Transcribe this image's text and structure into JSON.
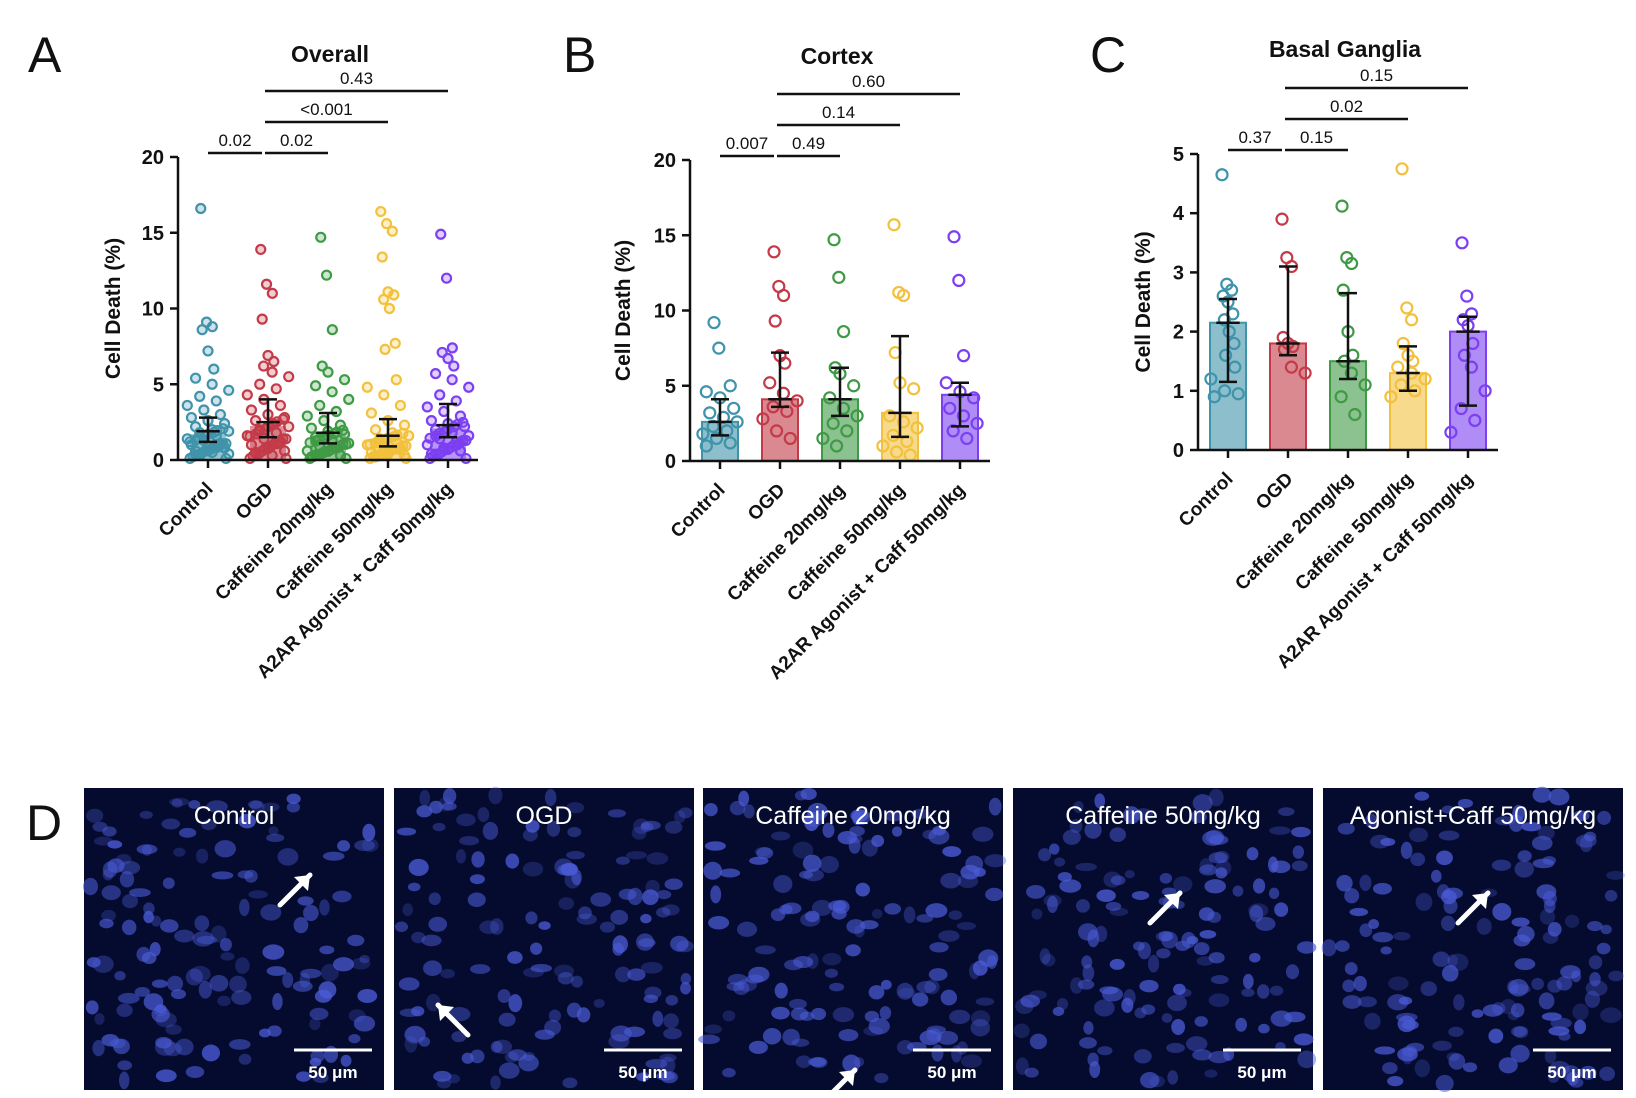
{
  "panel_letters": [
    "A",
    "B",
    "C",
    "D"
  ],
  "colors": {
    "Control": "#3f93aa",
    "OGD": "#c33b48",
    "Caffeine 20mg/kg": "#3f9a45",
    "Caffeine 50mg/kg": "#f2c13d",
    "A2AR Agonist + Caff 50mg/kg": "#7c3ff2",
    "micro_bg": "#050b2e",
    "nucleus": "#4a5bd6"
  },
  "chart_data": [
    {
      "type": "bar",
      "style": "scatter-with-errorbars",
      "panel": "A",
      "title": "Overall",
      "ylabel": "Cell Death (%)",
      "ylim": [
        0,
        20
      ],
      "yticks": [
        0,
        5,
        10,
        15,
        20
      ],
      "categories": [
        "Control",
        "OGD",
        "Caffeine 20mg/kg",
        "Caffeine 50mg/kg",
        "A2AR Agonist + Caff 50mg/kg"
      ],
      "values": [
        1.9,
        2.5,
        1.8,
        1.6,
        2.3
      ],
      "err_low": [
        1.2,
        1.5,
        1.1,
        0.9,
        1.5
      ],
      "err_high": [
        2.8,
        4.0,
        3.1,
        2.7,
        3.7
      ],
      "points": [
        [
          16.6,
          9.1,
          8.8,
          8.6,
          7.2,
          6.0,
          5.4,
          5.0,
          4.6,
          4.2,
          3.9,
          3.6,
          3.3,
          3.0,
          2.8,
          2.6,
          2.4,
          2.2,
          2.0,
          1.9,
          1.8,
          1.6,
          1.4,
          1.3,
          1.1,
          1.0,
          0.9,
          0.8,
          0.6,
          0.5,
          0.4,
          0.3
        ],
        [
          13.9,
          11.6,
          11.0,
          9.3,
          6.9,
          6.5,
          6.2,
          5.8,
          5.5,
          5.0,
          4.7,
          4.3,
          4.0,
          3.6,
          3.3,
          3.0,
          2.8,
          2.6,
          2.4,
          2.2,
          2.0,
          1.8,
          1.6,
          1.4,
          1.2,
          1.0,
          0.8,
          0.6,
          0.5,
          0.3
        ],
        [
          14.7,
          12.2,
          8.6,
          6.2,
          5.8,
          5.3,
          4.9,
          4.5,
          4.0,
          3.6,
          3.2,
          2.9,
          2.6,
          2.3,
          2.1,
          1.9,
          1.7,
          1.5,
          1.3,
          1.1,
          0.9,
          0.8,
          0.6,
          0.5,
          0.3,
          0.2
        ],
        [
          16.4,
          15.6,
          15.1,
          13.4,
          11.1,
          10.9,
          10.6,
          10.0,
          7.7,
          7.3,
          5.3,
          4.8,
          4.3,
          3.6,
          3.1,
          2.6,
          2.3,
          2.0,
          1.8,
          1.6,
          1.4,
          1.2,
          1.0,
          0.8,
          0.7,
          0.5,
          0.4,
          0.3,
          0.2
        ],
        [
          14.9,
          12.0,
          7.4,
          7.1,
          6.7,
          6.2,
          5.7,
          5.3,
          4.8,
          4.3,
          3.9,
          3.5,
          3.2,
          2.9,
          2.6,
          2.4,
          2.2,
          2.0,
          1.8,
          1.6,
          1.4,
          1.2,
          1.0,
          0.8,
          0.6,
          0.4
        ]
      ],
      "comparisons": [
        {
          "from": 0,
          "to": 1,
          "label": "0.02"
        },
        {
          "from": 1,
          "to": 2,
          "label": "0.02"
        },
        {
          "from": 1,
          "to": 3,
          "label": "<0.001"
        },
        {
          "from": 1,
          "to": 4,
          "label": "0.43"
        }
      ]
    },
    {
      "type": "bar",
      "style": "bar-with-points",
      "panel": "B",
      "title": "Cortex",
      "ylabel": "Cell Death (%)",
      "ylim": [
        0,
        20
      ],
      "yticks": [
        0,
        5,
        10,
        15,
        20
      ],
      "categories": [
        "Control",
        "OGD",
        "Caffeine 20mg/kg",
        "Caffeine 50mg/kg",
        "A2AR Agonist + Caff 50mg/kg"
      ],
      "values": [
        2.6,
        4.1,
        4.1,
        3.2,
        4.4
      ],
      "err_low": [
        1.7,
        3.6,
        3.0,
        1.6,
        2.3
      ],
      "err_high": [
        4.1,
        7.2,
        6.2,
        8.3,
        5.2
      ],
      "points": [
        [
          9.2,
          7.5,
          5.0,
          4.6,
          4.2,
          3.5,
          3.2,
          2.9,
          2.6,
          2.3,
          2.0,
          1.8,
          1.5,
          1.2,
          1.0
        ],
        [
          13.9,
          11.6,
          11.0,
          9.3,
          7.0,
          6.5,
          5.2,
          4.5,
          4.0,
          3.6,
          3.3,
          2.8,
          2.0,
          1.5
        ],
        [
          14.7,
          12.2,
          8.6,
          6.2,
          5.8,
          5.0,
          4.2,
          3.5,
          3.0,
          2.5,
          2.0,
          1.5,
          1.0
        ],
        [
          15.7,
          11.2,
          11.0,
          7.2,
          5.2,
          4.8,
          3.0,
          2.6,
          2.2,
          1.7,
          1.3,
          1.0,
          0.6,
          0.4
        ],
        [
          14.9,
          12.0,
          7.0,
          5.2,
          4.6,
          4.2,
          3.5,
          3.0,
          2.5,
          2.0,
          1.5
        ]
      ],
      "comparisons": [
        {
          "from": 0,
          "to": 1,
          "label": "0.007"
        },
        {
          "from": 1,
          "to": 2,
          "label": "0.49"
        },
        {
          "from": 1,
          "to": 3,
          "label": "0.14"
        },
        {
          "from": 1,
          "to": 4,
          "label": "0.60"
        }
      ]
    },
    {
      "type": "bar",
      "style": "bar-with-points",
      "panel": "C",
      "title": "Basal Ganglia",
      "ylabel": "Cell Death (%)",
      "ylim": [
        0,
        5
      ],
      "yticks": [
        0,
        1,
        2,
        3,
        4,
        5
      ],
      "categories": [
        "Control",
        "OGD",
        "Caffeine 20mg/kg",
        "Caffeine 50mg/kg",
        "A2AR Agonist + Caff 50mg/kg"
      ],
      "values": [
        2.15,
        1.8,
        1.5,
        1.3,
        2.0
      ],
      "err_low": [
        1.15,
        1.6,
        1.2,
        1.0,
        0.75
      ],
      "err_high": [
        2.55,
        3.1,
        2.65,
        1.75,
        2.25
      ],
      "points": [
        [
          4.65,
          2.8,
          2.7,
          2.6,
          2.5,
          2.3,
          2.2,
          2.0,
          1.8,
          1.6,
          1.4,
          1.2,
          1.0,
          0.95,
          0.9
        ],
        [
          3.9,
          3.25,
          3.1,
          1.9,
          1.8,
          1.75,
          1.7,
          1.4,
          1.3
        ],
        [
          4.12,
          3.25,
          3.15,
          2.7,
          2.0,
          1.6,
          1.5,
          1.3,
          1.1,
          0.9,
          0.6
        ],
        [
          4.75,
          2.4,
          2.2,
          1.8,
          1.6,
          1.5,
          1.4,
          1.3,
          1.2,
          1.1,
          1.0,
          0.9
        ],
        [
          3.5,
          2.6,
          2.3,
          2.2,
          2.1,
          1.8,
          1.6,
          1.4,
          1.0,
          0.7,
          0.5,
          0.3
        ]
      ],
      "comparisons": [
        {
          "from": 0,
          "to": 1,
          "label": "0.37"
        },
        {
          "from": 1,
          "to": 2,
          "label": "0.15"
        },
        {
          "from": 1,
          "to": 3,
          "label": "0.02"
        },
        {
          "from": 1,
          "to": 4,
          "label": "0.15"
        }
      ]
    }
  ],
  "micrographs": {
    "labels": [
      "Control",
      "OGD",
      "Caffeine 20mg/kg",
      "Caffeine 50mg/kg",
      "Agonist+Caff 50mg/kg"
    ],
    "scale_bar": "50 μm"
  }
}
